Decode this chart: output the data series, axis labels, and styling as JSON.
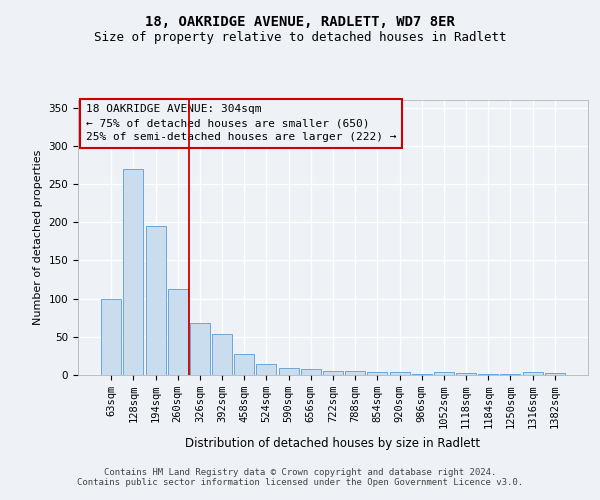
{
  "title1": "18, OAKRIDGE AVENUE, RADLETT, WD7 8ER",
  "title2": "Size of property relative to detached houses in Radlett",
  "xlabel": "Distribution of detached houses by size in Radlett",
  "ylabel": "Number of detached properties",
  "categories": [
    "63sqm",
    "128sqm",
    "194sqm",
    "260sqm",
    "326sqm",
    "392sqm",
    "458sqm",
    "524sqm",
    "590sqm",
    "656sqm",
    "722sqm",
    "788sqm",
    "854sqm",
    "920sqm",
    "986sqm",
    "1052sqm",
    "1118sqm",
    "1184sqm",
    "1250sqm",
    "1316sqm",
    "1382sqm"
  ],
  "values": [
    100,
    270,
    195,
    113,
    68,
    54,
    27,
    15,
    9,
    8,
    5,
    5,
    4,
    4,
    1,
    4,
    3,
    1,
    1,
    4,
    3
  ],
  "bar_color": "#c9ddef",
  "bar_edge_color": "#5b9bd5",
  "vline_color": "#cc0000",
  "vline_position": 4.5,
  "annotation_line1": "18 OAKRIDGE AVENUE: 304sqm",
  "annotation_line2": "← 75% of detached houses are smaller (650)",
  "annotation_line3": "25% of semi-detached houses are larger (222) →",
  "box_edge_color": "#cc0000",
  "background_color": "#eef2f7",
  "grid_color": "#ffffff",
  "footer_text": "Contains HM Land Registry data © Crown copyright and database right 2024.\nContains public sector information licensed under the Open Government Licence v3.0.",
  "ylim": [
    0,
    360
  ],
  "yticks": [
    0,
    50,
    100,
    150,
    200,
    250,
    300,
    350
  ],
  "title_fontsize": 10,
  "subtitle_fontsize": 9,
  "xlabel_fontsize": 8.5,
  "ylabel_fontsize": 8,
  "tick_fontsize": 7.5,
  "annotation_fontsize": 8,
  "footer_fontsize": 6.5
}
